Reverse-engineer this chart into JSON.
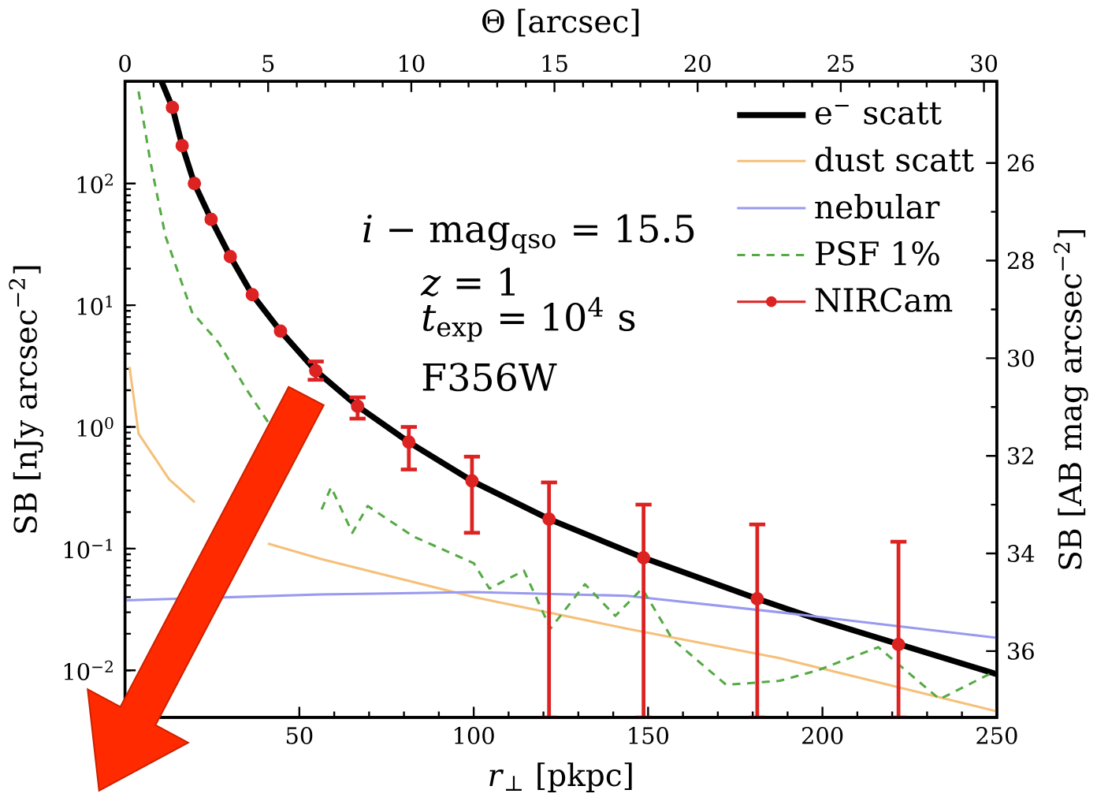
{
  "chart_data": {
    "type": "line",
    "xlabel": "*r*$_{⊥}$ [pkpc]",
    "x2label": "Θ [arcsec]",
    "ylabel": "SB [nJy arcsec$^{−2}$]",
    "y2label": "SB [AB mag arcsec$^{−2}$]",
    "xlim": [
      0,
      250
    ],
    "xticks": [
      50,
      100,
      150,
      200,
      250
    ],
    "x2lim": [
      0,
      30.45
    ],
    "x2ticks": [
      0,
      5,
      10,
      15,
      20,
      25,
      30
    ],
    "ylim": [
      0.0041,
      690
    ],
    "log": "y",
    "yticks": [
      {
        "value": 0.01,
        "label": "10$^{−2}$"
      },
      {
        "value": 0.1,
        "label": "10$^{−1}$"
      },
      {
        "value": 1,
        "label": "10$^{0}$"
      },
      {
        "value": 10,
        "label": "10$^{1}$"
      },
      {
        "value": 100,
        "label": "10$^{2}$"
      }
    ],
    "y2lim": [
      37.36,
      24.33
    ],
    "y2ticks": [
      26,
      28,
      30,
      32,
      34,
      36
    ],
    "legend": "top right",
    "grid": false,
    "series": [
      {
        "name": "e$^{−}$ scatt",
        "color": "#000000",
        "x": [
          10.5,
          13.6,
          16.4,
          19.9,
          24.7,
          30.2,
          36.5,
          44.6,
          54.7,
          66.7,
          81.4,
          99.5,
          121.6,
          148.7,
          181.3,
          200,
          250
        ],
        "values": [
          688,
          422,
          205,
          100,
          50.8,
          25.1,
          12.2,
          6.13,
          2.9,
          1.48,
          0.75,
          0.36,
          0.175,
          0.084,
          0.0387,
          0.0255,
          0.0093
        ]
      },
      {
        "name": "dust scatt",
        "color": "#f5c07a",
        "x": [
          1.3,
          3.9,
          12.7,
          20,
          32.4,
          41,
          56.4,
          100,
          144,
          187.7,
          250
        ],
        "values": [
          3.12,
          0.88,
          0.37,
          0.24,
          null,
          0.11,
          0.082,
          0.04,
          0.022,
          0.0126,
          0.0046
        ]
      },
      {
        "name": "nebular",
        "color": "#9999f0",
        "x": [
          0,
          56,
          100,
          144,
          187.7,
          250
        ],
        "values": [
          0.0376,
          0.042,
          0.044,
          0.041,
          0.03,
          0.0185
        ]
      },
      {
        "name": "PSF 1%",
        "color": "#55aa44",
        "line_style": "dashed",
        "x": [
          3.9,
          7.2,
          11.6,
          19.2,
          26.9,
          34.6,
          41.1,
          47.7,
          56.4,
          59.1,
          65.2,
          69.6,
          82.7,
          100,
          104.5,
          114.4,
          122,
          131.9,
          140.6,
          148.3,
          157,
          172.4,
          187.7,
          198.6,
          216,
          233.6,
          250
        ],
        "values": [
          570,
          156,
          37,
          8.8,
          4.9,
          2.08,
          1.09,
          null,
          0.21,
          0.32,
          0.135,
          0.224,
          0.126,
          0.076,
          0.047,
          0.066,
          0.022,
          0.051,
          0.028,
          0.047,
          0.018,
          0.0076,
          0.0082,
          0.01,
          0.0155,
          0.0058,
          0.01
        ]
      },
      {
        "name": "NIRCam",
        "type": "scatter",
        "marker": "circle",
        "color": "#dd2222",
        "x": [
          13.6,
          16.4,
          19.9,
          24.7,
          30.2,
          36.5,
          44.6,
          54.7,
          66.7,
          81.4,
          99.5,
          121.6,
          148.7,
          181.3,
          221.8
        ],
        "values": [
          422,
          205,
          100,
          50.8,
          25.1,
          12.2,
          6.13,
          2.9,
          1.48,
          0.75,
          0.36,
          0.175,
          0.084,
          0.0387,
          0.0163
        ],
        "errors": [
          null,
          null,
          null,
          null,
          null,
          null,
          null,
          [
            2.44,
            3.45
          ],
          [
            1.17,
            1.75
          ],
          [
            0.447,
            1.0
          ],
          [
            0.135,
            0.57
          ],
          [
            0.0041,
            0.35
          ],
          [
            0.0041,
            0.23
          ],
          [
            0.0041,
            0.158
          ],
          [
            0.0041,
            0.114
          ]
        ]
      }
    ],
    "annotations": [
      "*i* − mag$_{qso}$ = 15.5",
      "*z* = 1",
      "*t*$_{exp}$ = 10$^{4}$ s",
      "F356W"
    ]
  }
}
